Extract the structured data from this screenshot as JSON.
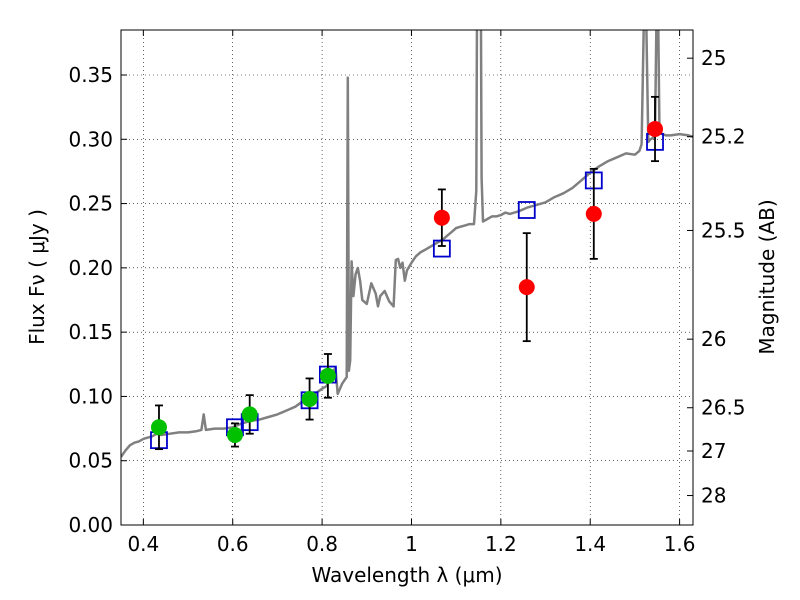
{
  "chart_data": {
    "type": "scatter",
    "title": "",
    "xlabel": "Wavelength  λ (μm)",
    "ylabel": "Flux  Fν  ( μJy )",
    "y2label": "Magnitude (AB)",
    "xlim": [
      0.35,
      1.63
    ],
    "ylim": [
      0.0,
      0.385
    ],
    "grid": true,
    "xticks": [
      {
        "v": 0.4,
        "label": "0.4"
      },
      {
        "v": 0.6,
        "label": "0.6"
      },
      {
        "v": 0.8,
        "label": "0.8"
      },
      {
        "v": 1.0,
        "label": "1"
      },
      {
        "v": 1.2,
        "label": "1.2"
      },
      {
        "v": 1.4,
        "label": "1.4"
      },
      {
        "v": 1.6,
        "label": "1.6"
      }
    ],
    "yticks": [
      {
        "v": 0.0,
        "label": "0.00"
      },
      {
        "v": 0.05,
        "label": "0.05"
      },
      {
        "v": 0.1,
        "label": "0.10"
      },
      {
        "v": 0.15,
        "label": "0.15"
      },
      {
        "v": 0.2,
        "label": "0.20"
      },
      {
        "v": 0.25,
        "label": "0.25"
      },
      {
        "v": 0.3,
        "label": "0.30"
      },
      {
        "v": 0.35,
        "label": "0.35"
      }
    ],
    "y2ticks": [
      {
        "mag": 25,
        "label": "25"
      },
      {
        "mag": 25.2,
        "label": "25.2"
      },
      {
        "mag": 25.5,
        "label": "25.5"
      },
      {
        "mag": 26,
        "label": "26"
      },
      {
        "mag": 26.5,
        "label": "26.5"
      },
      {
        "mag": 27,
        "label": "27"
      },
      {
        "mag": 28,
        "label": "28"
      }
    ],
    "colors": {
      "model": "#808080",
      "optical": "#00c000",
      "nir": "#ff0000",
      "model_phot": "#0000cc",
      "err": "#000000"
    },
    "series": [
      {
        "kind": "line",
        "points": [
          [
            0.35,
            0.053
          ],
          [
            0.36,
            0.058
          ],
          [
            0.37,
            0.062
          ],
          [
            0.38,
            0.064
          ],
          [
            0.39,
            0.065
          ],
          [
            0.4,
            0.067
          ],
          [
            0.41,
            0.068
          ],
          [
            0.42,
            0.069
          ],
          [
            0.43,
            0.071
          ],
          [
            0.44,
            0.07
          ],
          [
            0.46,
            0.071
          ],
          [
            0.48,
            0.072
          ],
          [
            0.5,
            0.072
          ],
          [
            0.52,
            0.073
          ],
          [
            0.53,
            0.074
          ],
          [
            0.535,
            0.086
          ],
          [
            0.54,
            0.074
          ],
          [
            0.56,
            0.075
          ],
          [
            0.58,
            0.075
          ],
          [
            0.6,
            0.076
          ],
          [
            0.62,
            0.079
          ],
          [
            0.64,
            0.081
          ],
          [
            0.66,
            0.082
          ],
          [
            0.68,
            0.084
          ],
          [
            0.7,
            0.086
          ],
          [
            0.72,
            0.089
          ],
          [
            0.74,
            0.092
          ],
          [
            0.76,
            0.097
          ],
          [
            0.78,
            0.101
          ],
          [
            0.8,
            0.106
          ],
          [
            0.81,
            0.108
          ],
          [
            0.815,
            0.112
          ],
          [
            0.82,
            0.118
          ],
          [
            0.83,
            0.122
          ],
          [
            0.835,
            0.102
          ],
          [
            0.845,
            0.11
          ],
          [
            0.855,
            0.115
          ],
          [
            0.8575,
            0.348
          ],
          [
            0.86,
            0.12
          ],
          [
            0.863,
            0.128
          ],
          [
            0.866,
            0.205
          ],
          [
            0.87,
            0.178
          ],
          [
            0.875,
            0.195
          ],
          [
            0.88,
            0.2
          ],
          [
            0.885,
            0.19
          ],
          [
            0.89,
            0.175
          ],
          [
            0.9,
            0.172
          ],
          [
            0.91,
            0.188
          ],
          [
            0.92,
            0.18
          ],
          [
            0.925,
            0.17
          ],
          [
            0.93,
            0.178
          ],
          [
            0.94,
            0.182
          ],
          [
            0.95,
            0.174
          ],
          [
            0.96,
            0.17
          ],
          [
            0.965,
            0.206
          ],
          [
            0.97,
            0.207
          ],
          [
            0.975,
            0.2
          ],
          [
            0.98,
            0.204
          ],
          [
            0.985,
            0.19
          ],
          [
            0.99,
            0.198
          ],
          [
            1.0,
            0.204
          ],
          [
            1.01,
            0.209
          ],
          [
            1.02,
            0.212
          ],
          [
            1.03,
            0.214
          ],
          [
            1.04,
            0.216
          ],
          [
            1.05,
            0.218
          ],
          [
            1.06,
            0.22
          ],
          [
            1.07,
            0.222
          ],
          [
            1.08,
            0.225
          ],
          [
            1.09,
            0.228
          ],
          [
            1.1,
            0.231
          ],
          [
            1.11,
            0.232
          ],
          [
            1.12,
            0.233
          ],
          [
            1.13,
            0.234
          ],
          [
            1.14,
            0.234
          ],
          [
            1.145,
            0.26
          ],
          [
            1.147,
            0.44
          ],
          [
            1.155,
            0.44
          ],
          [
            1.157,
            0.27
          ],
          [
            1.16,
            0.236
          ],
          [
            1.17,
            0.238
          ],
          [
            1.18,
            0.24
          ],
          [
            1.19,
            0.24
          ],
          [
            1.2,
            0.241
          ],
          [
            1.21,
            0.243
          ],
          [
            1.22,
            0.242
          ],
          [
            1.24,
            0.244
          ],
          [
            1.26,
            0.247
          ],
          [
            1.28,
            0.249
          ],
          [
            1.3,
            0.251
          ],
          [
            1.32,
            0.255
          ],
          [
            1.34,
            0.258
          ],
          [
            1.36,
            0.262
          ],
          [
            1.38,
            0.268
          ],
          [
            1.4,
            0.274
          ],
          [
            1.42,
            0.279
          ],
          [
            1.44,
            0.283
          ],
          [
            1.46,
            0.286
          ],
          [
            1.48,
            0.289
          ],
          [
            1.5,
            0.288
          ],
          [
            1.51,
            0.291
          ],
          [
            1.515,
            0.296
          ],
          [
            1.52,
            0.39
          ],
          [
            1.525,
            0.4
          ],
          [
            1.53,
            0.298
          ],
          [
            1.535,
            0.3
          ],
          [
            1.54,
            0.301
          ],
          [
            1.545,
            0.303
          ],
          [
            1.548,
            0.39
          ],
          [
            1.552,
            0.4
          ],
          [
            1.555,
            0.305
          ],
          [
            1.57,
            0.303
          ],
          [
            1.58,
            0.303
          ],
          [
            1.6,
            0.304
          ],
          [
            1.62,
            0.303
          ],
          [
            1.63,
            0.302
          ]
        ]
      },
      {
        "kind": "square",
        "points": [
          [
            0.435,
            0.066
          ],
          [
            0.605,
            0.076
          ],
          [
            0.638,
            0.08
          ],
          [
            0.772,
            0.097
          ],
          [
            0.813,
            0.117
          ],
          [
            1.068,
            0.215
          ],
          [
            1.258,
            0.245
          ],
          [
            1.408,
            0.268
          ],
          [
            1.545,
            0.298
          ]
        ]
      },
      {
        "kind": "circle-err",
        "points": [
          [
            0.435,
            0.076,
            0.017
          ],
          [
            0.605,
            0.07,
            0.009
          ],
          [
            0.638,
            0.086,
            0.015
          ],
          [
            0.772,
            0.098,
            0.016
          ],
          [
            0.813,
            0.116,
            0.017
          ]
        ]
      },
      {
        "kind": "circle-err-red",
        "points": [
          [
            1.068,
            0.239,
            0.022
          ],
          [
            1.258,
            0.185,
            0.042
          ],
          [
            1.408,
            0.242,
            0.035
          ],
          [
            1.545,
            0.308,
            0.025
          ]
        ]
      }
    ]
  }
}
